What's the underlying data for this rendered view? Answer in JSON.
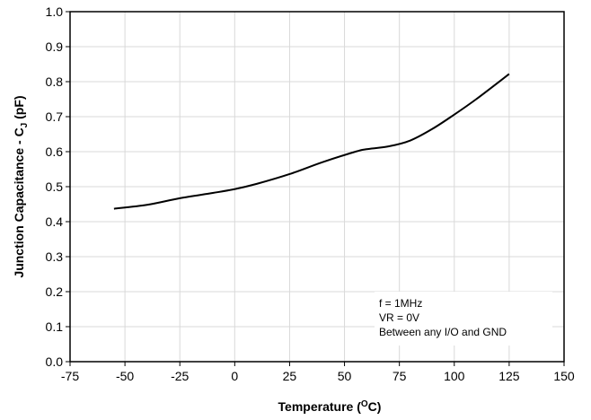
{
  "chart_data": {
    "type": "line",
    "title": "",
    "xlabel": "Temperature (",
    "xlabel_sup": "O",
    "xlabel_tail": "C)",
    "ylabel": "Junction Capacitance - C",
    "ylabel_sub": "J",
    "ylabel_tail": " (pF)",
    "xlim": [
      -75,
      150
    ],
    "ylim": [
      0.0,
      1.0
    ],
    "xticks": [
      "-75",
      "-50",
      "-25",
      "0",
      "25",
      "50",
      "75",
      "100",
      "125",
      "150"
    ],
    "yticks": [
      "0.0",
      "0.1",
      "0.2",
      "0.3",
      "0.4",
      "0.5",
      "0.6",
      "0.7",
      "0.8",
      "0.9",
      "1.0"
    ],
    "grid": true,
    "series": [
      {
        "color": "#000000",
        "x": [
          -55,
          -40,
          -25,
          -10,
          0,
          10,
          25,
          40,
          55,
          60,
          70,
          80,
          90,
          100,
          110,
          125
        ],
        "y": [
          0.437,
          0.448,
          0.467,
          0.482,
          0.493,
          0.508,
          0.536,
          0.57,
          0.6,
          0.607,
          0.615,
          0.632,
          0.665,
          0.706,
          0.75,
          0.822
        ]
      }
    ],
    "annotation": [
      "f = 1MHz",
      "VR = 0V",
      "Between any I/O and GND"
    ]
  }
}
